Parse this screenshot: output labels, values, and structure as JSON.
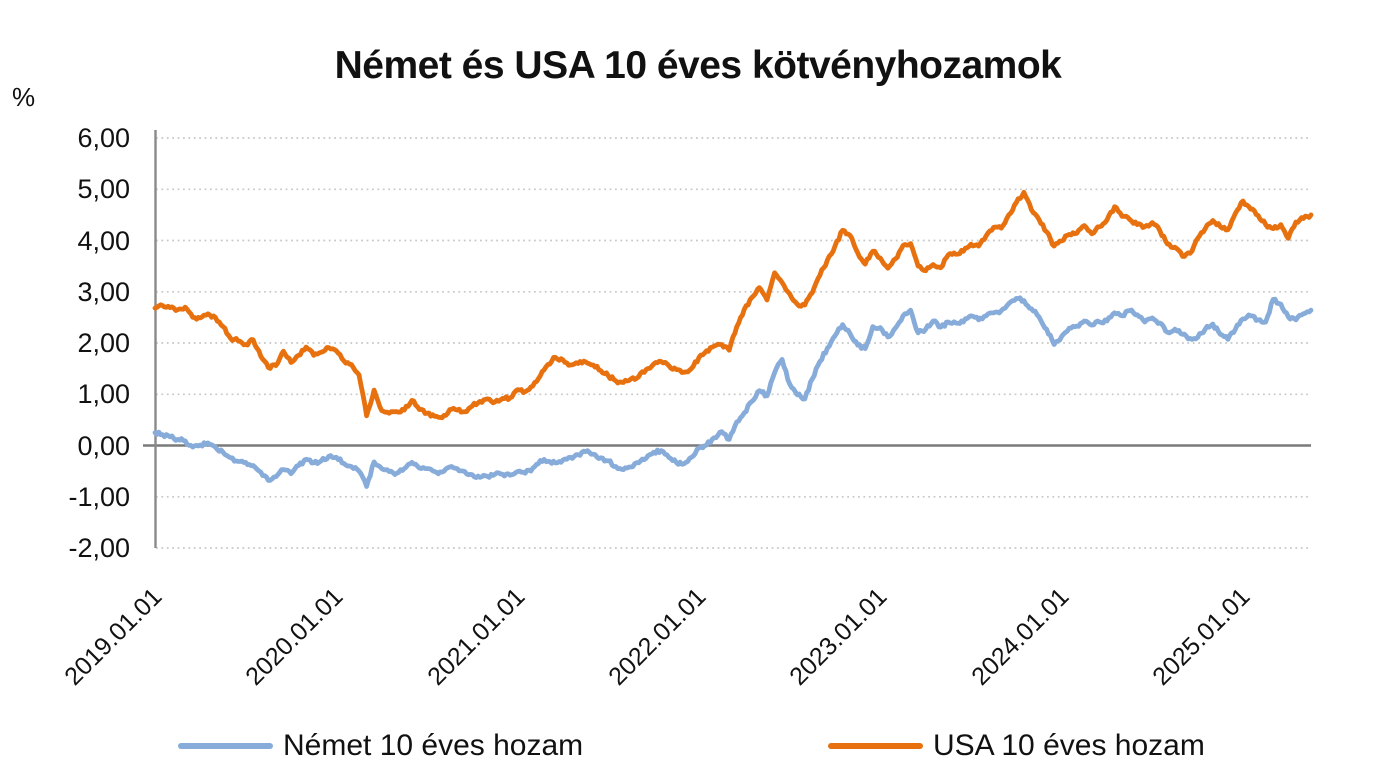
{
  "title": "Német és USA 10 éves kötvényhozamok",
  "y_axis": {
    "unit_label": "%",
    "tick_labels": [
      "6,00",
      "5,00",
      "4,00",
      "3,00",
      "2,00",
      "1,00",
      "0,00",
      "-1,00",
      "-2,00"
    ],
    "tick_values": [
      6,
      5,
      4,
      3,
      2,
      1,
      0,
      -1,
      -2
    ],
    "min": -2,
    "max": 6,
    "step": 1
  },
  "x_axis": {
    "tick_labels": [
      "2019.01.01",
      "2020.01.01",
      "2021.01.01",
      "2022.01.01",
      "2023.01.01",
      "2024.01.01",
      "2025.01.01"
    ]
  },
  "legend": [
    {
      "label": "Német 10 éves hozam",
      "color": "#87ACDA"
    },
    {
      "label": "USA 10 éves hozam",
      "color": "#E8710F"
    }
  ],
  "chart_data": {
    "type": "line",
    "title": "Német és USA 10 éves kötvényhozamok",
    "ylabel": "%",
    "ylim": [
      -2,
      6
    ],
    "grid": "horizontal-dotted",
    "legend_position": "bottom",
    "x_start": "2019-01",
    "x_end": "2025-05",
    "sampling": "semi-monthly (2 points per month)",
    "x_tick_labels": [
      "2019.01.01",
      "2020.01.01",
      "2021.01.01",
      "2022.01.01",
      "2023.01.01",
      "2024.01.01",
      "2025.01.01"
    ],
    "series": [
      {
        "name": "Német 10 éves hozam",
        "color": "#87ACDA",
        "values": [
          0.25,
          0.21,
          0.17,
          0.12,
          0.09,
          -0.03,
          0.01,
          0.05,
          -0.03,
          -0.13,
          -0.24,
          -0.31,
          -0.33,
          -0.39,
          -0.52,
          -0.68,
          -0.61,
          -0.47,
          -0.55,
          -0.39,
          -0.27,
          -0.34,
          -0.3,
          -0.21,
          -0.23,
          -0.35,
          -0.41,
          -0.5,
          -0.8,
          -0.32,
          -0.45,
          -0.51,
          -0.54,
          -0.45,
          -0.33,
          -0.44,
          -0.45,
          -0.51,
          -0.52,
          -0.42,
          -0.45,
          -0.51,
          -0.57,
          -0.62,
          -0.6,
          -0.56,
          -0.56,
          -0.58,
          -0.51,
          -0.54,
          -0.44,
          -0.29,
          -0.31,
          -0.34,
          -0.28,
          -0.23,
          -0.18,
          -0.12,
          -0.17,
          -0.24,
          -0.3,
          -0.41,
          -0.47,
          -0.42,
          -0.34,
          -0.25,
          -0.13,
          -0.1,
          -0.23,
          -0.33,
          -0.36,
          -0.23,
          -0.05,
          0.01,
          0.15,
          0.27,
          0.12,
          0.46,
          0.64,
          0.86,
          1.07,
          0.97,
          1.42,
          1.68,
          1.2,
          0.99,
          0.91,
          1.3,
          1.64,
          1.9,
          2.14,
          2.36,
          2.18,
          1.96,
          1.89,
          2.32,
          2.3,
          2.12,
          2.29,
          2.53,
          2.64,
          2.2,
          2.27,
          2.43,
          2.31,
          2.41,
          2.39,
          2.41,
          2.53,
          2.45,
          2.53,
          2.59,
          2.63,
          2.77,
          2.87,
          2.83,
          2.67,
          2.51,
          2.27,
          1.97,
          2.13,
          2.29,
          2.33,
          2.43,
          2.35,
          2.41,
          2.43,
          2.59,
          2.53,
          2.63,
          2.55,
          2.41,
          2.49,
          2.39,
          2.21,
          2.27,
          2.17,
          2.09,
          2.11,
          2.27,
          2.37,
          2.17,
          2.07,
          2.27,
          2.47,
          2.53,
          2.45,
          2.41,
          2.85,
          2.76,
          2.51,
          2.45,
          2.57,
          2.64
        ]
      },
      {
        "name": "USA 10 éves hozam",
        "color": "#E8710F",
        "values": [
          2.68,
          2.73,
          2.69,
          2.65,
          2.7,
          2.5,
          2.49,
          2.57,
          2.5,
          2.32,
          2.09,
          2.04,
          1.97,
          2.06,
          1.74,
          1.52,
          1.56,
          1.84,
          1.62,
          1.76,
          1.92,
          1.76,
          1.82,
          1.91,
          1.85,
          1.65,
          1.58,
          1.38,
          0.58,
          1.08,
          0.68,
          0.63,
          0.66,
          0.69,
          0.88,
          0.7,
          0.63,
          0.57,
          0.54,
          0.7,
          0.69,
          0.66,
          0.77,
          0.86,
          0.91,
          0.85,
          0.92,
          0.93,
          1.09,
          1.05,
          1.16,
          1.36,
          1.58,
          1.72,
          1.67,
          1.57,
          1.6,
          1.63,
          1.57,
          1.46,
          1.36,
          1.26,
          1.23,
          1.3,
          1.34,
          1.48,
          1.59,
          1.64,
          1.56,
          1.48,
          1.43,
          1.5,
          1.72,
          1.85,
          1.94,
          1.97,
          1.86,
          2.32,
          2.66,
          2.89,
          3.08,
          2.84,
          3.37,
          3.18,
          2.96,
          2.76,
          2.74,
          2.98,
          3.32,
          3.62,
          3.89,
          4.2,
          4.1,
          3.76,
          3.54,
          3.79,
          3.66,
          3.46,
          3.64,
          3.9,
          3.94,
          3.5,
          3.41,
          3.53,
          3.47,
          3.72,
          3.73,
          3.79,
          3.93,
          3.89,
          4.09,
          4.26,
          4.24,
          4.5,
          4.74,
          4.94,
          4.6,
          4.41,
          4.17,
          3.89,
          3.99,
          4.12,
          4.14,
          4.29,
          4.13,
          4.27,
          4.4,
          4.66,
          4.47,
          4.41,
          4.31,
          4.27,
          4.35,
          4.19,
          3.93,
          3.87,
          3.69,
          3.75,
          4.04,
          4.23,
          4.39,
          4.27,
          4.21,
          4.53,
          4.77,
          4.61,
          4.49,
          4.31,
          4.23,
          4.31,
          4.04,
          4.36,
          4.43,
          4.5
        ]
      }
    ]
  }
}
